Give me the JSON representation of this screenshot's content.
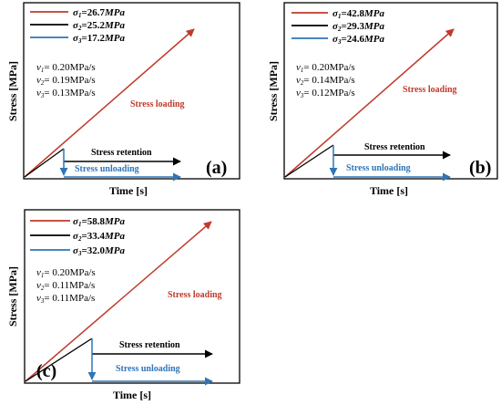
{
  "colors": {
    "loading": "#c0392b",
    "retention": "#000000",
    "unloading": "#2e75b6",
    "frame": "#000000"
  },
  "axes": {
    "ylabel": "Stress [MPa]",
    "xlabel": "Time [s]"
  },
  "curve_labels": {
    "loading": "Stress loading",
    "retention": "Stress retention",
    "unloading": "Stress unloading"
  },
  "panels": [
    {
      "id": "a",
      "tag": "(a)",
      "legend": [
        {
          "sym": "σ",
          "sub": "1",
          "eq": "=26.7",
          "unit": "MPa"
        },
        {
          "sym": "σ",
          "sub": "2",
          "eq": "=25.2",
          "unit": "MPa"
        },
        {
          "sym": "σ",
          "sub": "3",
          "eq": "=17.2",
          "unit": "MPa"
        }
      ],
      "rates": [
        {
          "sym": "v",
          "sub": "1",
          "text": "= 0.20MPa/s"
        },
        {
          "sym": "v",
          "sub": "2",
          "text": "= 0.19MPa/s"
        },
        {
          "sym": "v",
          "sub": "3",
          "text": "= 0.13MPa/s"
        }
      ]
    },
    {
      "id": "b",
      "tag": "(b)",
      "legend": [
        {
          "sym": "σ",
          "sub": "1",
          "eq": "=42.8",
          "unit": "MPa"
        },
        {
          "sym": "σ",
          "sub": "2",
          "eq": "=29.3",
          "unit": "MPa"
        },
        {
          "sym": "σ",
          "sub": "3",
          "eq": "=24.6",
          "unit": "MPa"
        }
      ],
      "rates": [
        {
          "sym": "v",
          "sub": "1",
          "text": "= 0.20MPa/s"
        },
        {
          "sym": "v",
          "sub": "2",
          "text": "= 0.14MPa/s"
        },
        {
          "sym": "v",
          "sub": "3",
          "text": "= 0.12MPa/s"
        }
      ]
    },
    {
      "id": "c",
      "tag": "(c)",
      "legend": [
        {
          "sym": "σ",
          "sub": "1",
          "eq": "=58.8",
          "unit": "MPa"
        },
        {
          "sym": "σ",
          "sub": "2",
          "eq": "=33.4",
          "unit": "MPa"
        },
        {
          "sym": "σ",
          "sub": "3",
          "eq": "=32.0",
          "unit": "MPa"
        }
      ],
      "rates": [
        {
          "sym": "v",
          "sub": "1",
          "text": "= 0.20MPa/s"
        },
        {
          "sym": "v",
          "sub": "2",
          "text": "= 0.11MPa/s"
        },
        {
          "sym": "v",
          "sub": "3",
          "text": "= 0.11MPa/s"
        }
      ]
    }
  ]
}
